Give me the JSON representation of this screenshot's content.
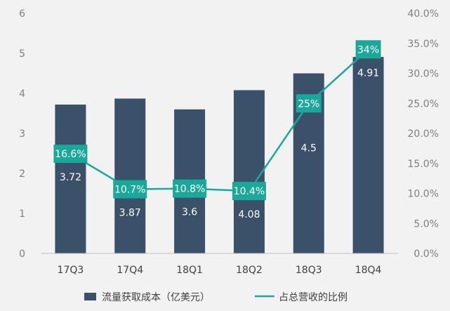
{
  "chart_data": {
    "type": "bar",
    "categories": [
      "17Q3",
      "17Q4",
      "18Q1",
      "18Q2",
      "18Q3",
      "18Q4"
    ],
    "series": [
      {
        "name": "流量获取成本（亿美元）",
        "type": "bar",
        "axis": "left",
        "values": [
          3.72,
          3.87,
          3.6,
          4.08,
          4.5,
          4.91
        ],
        "labels": [
          "3.72",
          "3.87",
          "3.6",
          "4.08",
          "4.5",
          "4.91"
        ]
      },
      {
        "name": "占总营收的比例",
        "type": "line",
        "axis": "right",
        "values": [
          16.6,
          10.7,
          10.8,
          10.4,
          25,
          34
        ],
        "labels": [
          "16.6%",
          "10.7%",
          "10.8%",
          "10.4%",
          "25%",
          "34%"
        ]
      }
    ],
    "ylim_left": [
      0,
      6
    ],
    "yticks_left": [
      "0",
      "1",
      "2",
      "3",
      "4",
      "5",
      "6"
    ],
    "ylim_right": [
      0,
      40
    ],
    "yticks_right": [
      "0.0%",
      "5.0%",
      "10.0%",
      "15.0%",
      "20.0%",
      "25.0%",
      "30.0%",
      "35.0%",
      "40.0%"
    ],
    "grid": false,
    "legend_position": "bottom",
    "colors": {
      "bar": "#3a5169",
      "line": "#1aa89a",
      "label_box": "#1aa89a",
      "background": "#f2f2f2"
    }
  }
}
